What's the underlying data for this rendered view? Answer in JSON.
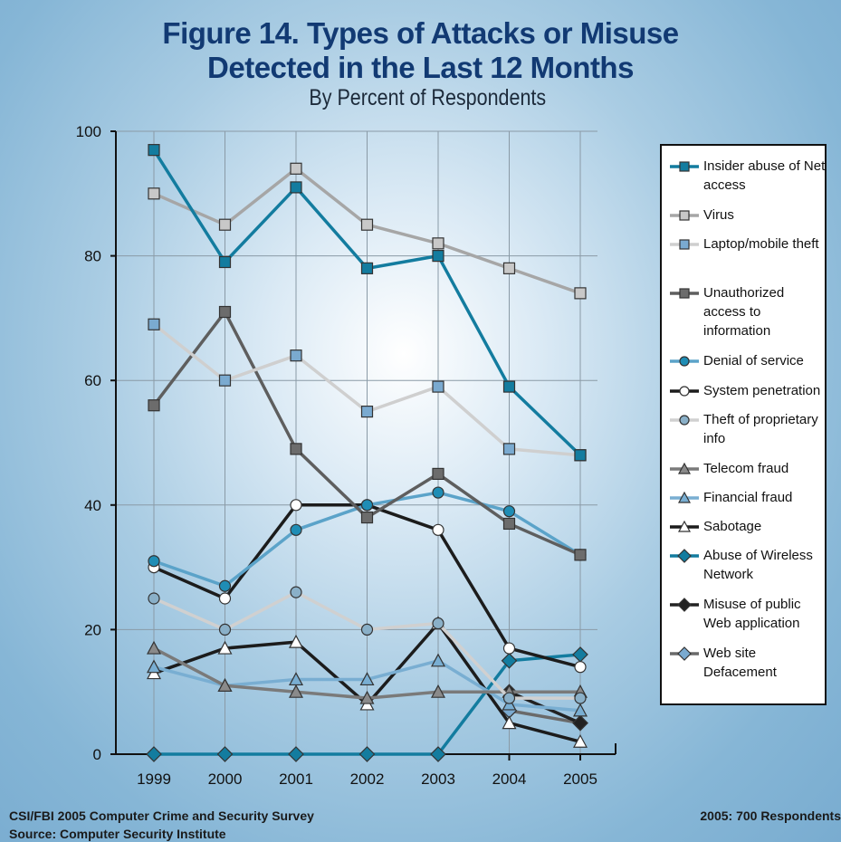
{
  "title_line1": "Figure 14. Types of Attacks or Misuse",
  "title_line2": "Detected in the Last 12 Months",
  "subtitle": "By Percent of Respondents",
  "footer": {
    "survey": "CSI/FBI 2005 Computer Crime and Security Survey",
    "source": "Source: Computer Security Institute",
    "respondents": "2005: 700 Respondents"
  },
  "chart_data": {
    "type": "line",
    "x": [
      "1999",
      "2000",
      "2001",
      "2002",
      "2003",
      "2004",
      "2005"
    ],
    "ylim": [
      0,
      100
    ],
    "yticks": [
      0,
      20,
      40,
      60,
      80,
      100
    ],
    "grid": true,
    "legend_position": "right",
    "series": [
      {
        "name": "Insider abuse of Net access",
        "values": [
          97,
          79,
          91,
          78,
          80,
          59,
          48
        ],
        "color": "#137c9f",
        "marker": "square",
        "fill": "#137c9f"
      },
      {
        "name": "Virus",
        "values": [
          90,
          85,
          94,
          85,
          82,
          78,
          74
        ],
        "color": "#a6a6a6",
        "marker": "square",
        "fill": "#c8c8c8"
      },
      {
        "name": "Laptop/mobile theft",
        "values": [
          69,
          60,
          64,
          55,
          59,
          49,
          48
        ],
        "color": "#cfcfcf",
        "marker": "square",
        "fill": "#7aaad0"
      },
      {
        "name": "Unauthorized access to information",
        "values": [
          56,
          71,
          49,
          38,
          45,
          37,
          32
        ],
        "color": "#5e5e5e",
        "marker": "square",
        "fill": "#6c6c6c"
      },
      {
        "name": "Denial of service",
        "values": [
          31,
          27,
          36,
          40,
          42,
          39,
          32
        ],
        "color": "#5ba3c9",
        "marker": "circle",
        "fill": "#1f8db5"
      },
      {
        "name": "System penetration",
        "values": [
          30,
          25,
          40,
          40,
          36,
          17,
          14
        ],
        "color": "#1c1c1c",
        "marker": "circle",
        "fill": "#ffffff"
      },
      {
        "name": "Theft of proprietary info",
        "values": [
          25,
          20,
          26,
          20,
          21,
          9,
          9
        ],
        "color": "#d0d0d0",
        "marker": "circle",
        "fill": "#8ab0c8"
      },
      {
        "name": "Telecom fraud",
        "values": [
          17,
          11,
          10,
          9,
          10,
          10,
          10
        ],
        "color": "#7a7a7a",
        "marker": "triangle",
        "fill": "#8a8a8a"
      },
      {
        "name": "Financial fraud",
        "values": [
          14,
          11,
          12,
          12,
          15,
          8,
          7
        ],
        "color": "#79aed2",
        "marker": "triangle",
        "fill": "#79aed2"
      },
      {
        "name": "Sabotage",
        "values": [
          13,
          17,
          18,
          8,
          21,
          5,
          2
        ],
        "color": "#1c1c1c",
        "marker": "triangle",
        "fill": "#ffffff"
      },
      {
        "name": "Abuse of Wireless Network",
        "values": [
          0,
          0,
          0,
          0,
          0,
          15,
          16
        ],
        "color": "#137c9f",
        "marker": "diamond",
        "fill": "#137c9f"
      },
      {
        "name": "Misuse of public Web application",
        "values": [
          null,
          null,
          null,
          null,
          null,
          10,
          5
        ],
        "color": "#222222",
        "marker": "diamond",
        "fill": "#222222"
      },
      {
        "name": "Web site Defacement",
        "values": [
          null,
          null,
          null,
          null,
          null,
          7,
          5
        ],
        "color": "#6a6a6a",
        "marker": "diamond",
        "fill": "#7aaad0"
      }
    ]
  }
}
